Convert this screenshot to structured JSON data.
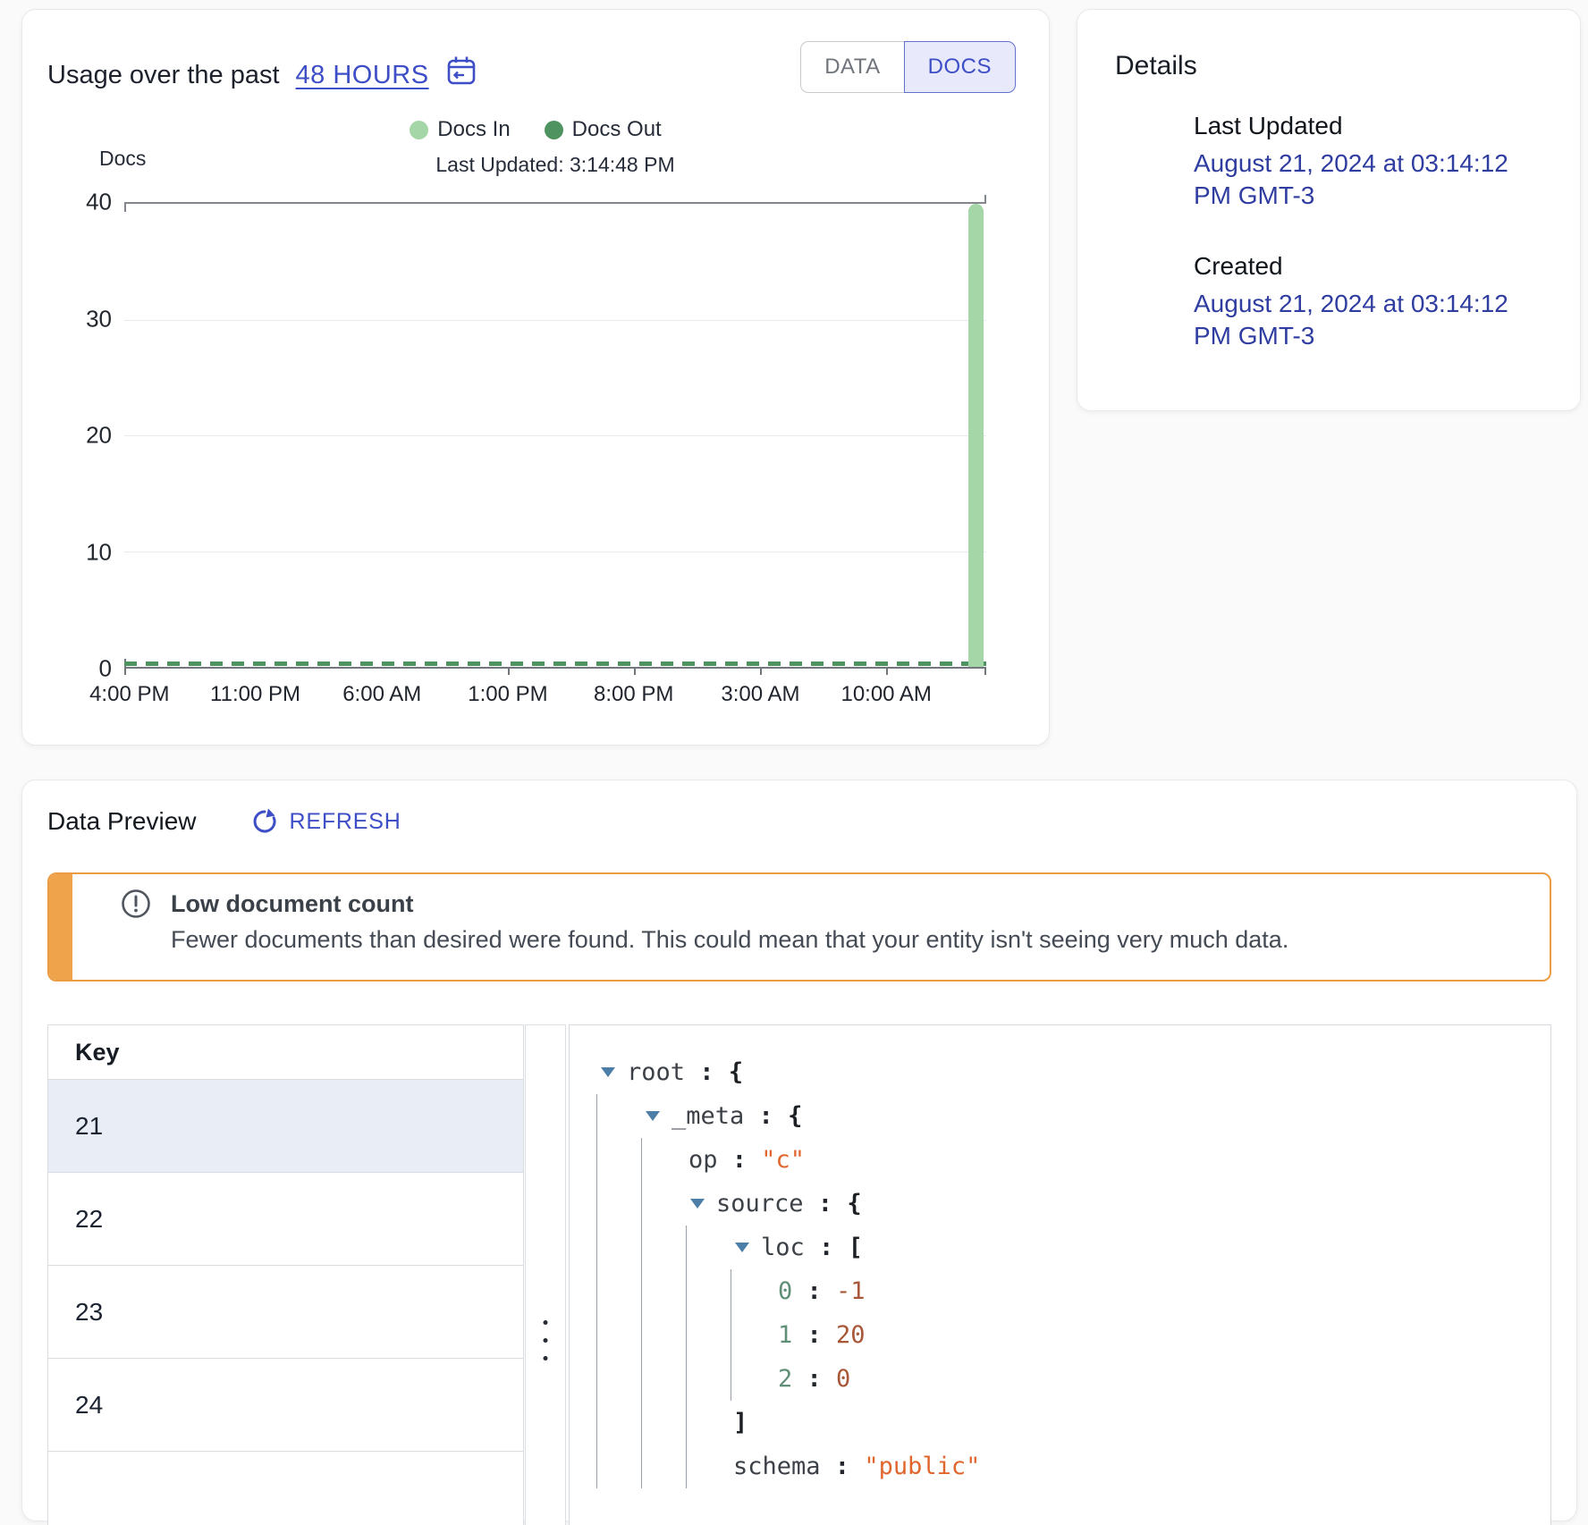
{
  "usage_card": {
    "title": "Usage over the past",
    "range_link_label": "48 HOURS",
    "toggle": {
      "options": [
        "DATA",
        "DOCS"
      ],
      "selected": "DOCS"
    },
    "legend": [
      {
        "label": "Docs In",
        "color": "#a4d6a7"
      },
      {
        "label": "Docs Out",
        "color": "#4e9360"
      }
    ],
    "chart_header": {
      "axis_title": "Docs",
      "last_updated": "Last Updated: 3:14:48 PM"
    }
  },
  "chart_data": {
    "type": "bar",
    "title": "Usage over the past 48 hours",
    "ylabel": "Docs",
    "ylim": [
      0,
      40
    ],
    "y_ticks": [
      "40",
      "30",
      "20",
      "10",
      "0"
    ],
    "x_tick_labels": [
      "4:00 PM",
      "11:00 PM",
      "6:00 AM",
      "1:00 PM",
      "8:00 PM",
      "3:00 AM",
      "10:00 AM"
    ],
    "grid": true,
    "legend_position": "top",
    "series": [
      {
        "name": "Docs In",
        "type": "bar",
        "color": "#a4d6a7",
        "description": "0 docs across the whole 48h window, single spike of 40 at the far right (latest interval)",
        "spike_value": 40,
        "spike_position": "right-edge"
      },
      {
        "name": "Docs Out",
        "type": "line",
        "style": "dashed",
        "color": "#4e9360",
        "description": "flat dashed line at 0 across the whole 48h window",
        "value": 0
      }
    ]
  },
  "details_card": {
    "title": "Details",
    "items": [
      {
        "label": "Last Updated",
        "value": "August 21, 2024 at 03:14:12 PM GMT-3"
      },
      {
        "label": "Created",
        "value": "August 21, 2024 at 03:14:12 PM GMT-3"
      }
    ]
  },
  "preview_card": {
    "title": "Data Preview",
    "refresh_label": "REFRESH",
    "warning": {
      "title": "Low document count",
      "description": "Fewer documents than desired were found. This could mean that your entity isn't seeing very much data."
    },
    "key_table": {
      "header": "Key",
      "rows": [
        "21",
        "22",
        "23",
        "24"
      ],
      "selected": "21"
    },
    "json_tree": [
      {
        "depth": 0,
        "arrow": true,
        "key": "root",
        "open": "{"
      },
      {
        "depth": 1,
        "arrow": true,
        "key": "_meta",
        "open": "{"
      },
      {
        "depth": 2,
        "arrow": false,
        "key": "op",
        "value": "\"c\"",
        "vtype": "string"
      },
      {
        "depth": 2,
        "arrow": true,
        "key": "source",
        "open": "{"
      },
      {
        "depth": 3,
        "arrow": true,
        "key": "loc",
        "open": "["
      },
      {
        "depth": 4,
        "arrow": false,
        "key": "0",
        "ktype": "index",
        "value": "-1",
        "vtype": "number"
      },
      {
        "depth": 4,
        "arrow": false,
        "key": "1",
        "ktype": "index",
        "value": "20",
        "vtype": "number"
      },
      {
        "depth": 4,
        "arrow": false,
        "key": "2",
        "ktype": "index",
        "value": "0",
        "vtype": "number"
      },
      {
        "depth": 3,
        "arrow": false,
        "close": "]"
      },
      {
        "depth": 3,
        "arrow": false,
        "key": "schema",
        "value": "\"public\"",
        "vtype": "string"
      }
    ]
  },
  "colors": {
    "accent_indigo": "#3d4ec6",
    "accent_indigo_dark": "#2f3da0",
    "docs_in_green": "#a4d6a7",
    "docs_out_green": "#4e9360",
    "warning_orange": "#eb9c43",
    "selected_row": "#e9edf6",
    "json_string": "#e0662d",
    "json_number": "#a85838",
    "json_index": "#5f9077",
    "json_arrow": "#4d7ea8"
  }
}
